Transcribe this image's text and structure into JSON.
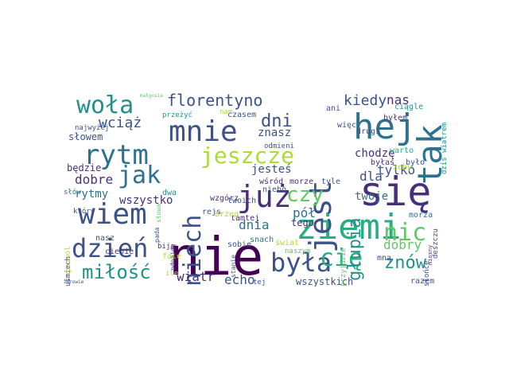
{
  "colors": {
    "background": "#ffffff",
    "palette": [
      "#440154",
      "#472f7d",
      "#3b528b",
      "#2c728e",
      "#21918c",
      "#28ae80",
      "#5ec962",
      "#addc30",
      "#fde725"
    ]
  },
  "words": [
    {
      "text": "nie",
      "color": "#440154"
    },
    {
      "text": "się",
      "color": "#472f7d"
    },
    {
      "text": "hej",
      "color": "#2c728e"
    },
    {
      "text": "ziemi",
      "color": "#28ae80"
    },
    {
      "text": "już",
      "color": "#472f7d"
    },
    {
      "text": "tak",
      "color": "#2c728e"
    },
    {
      "text": "jest",
      "color": "#3b528b"
    },
    {
      "text": "dzień",
      "color": "#3b528b"
    },
    {
      "text": "wiem",
      "color": "#3b528b"
    },
    {
      "text": "mnie",
      "color": "#3b528b"
    },
    {
      "text": "była",
      "color": "#3b528b"
    },
    {
      "text": "rytm",
      "color": "#2c728e"
    },
    {
      "text": "jak",
      "color": "#2c728e"
    },
    {
      "text": "woła",
      "color": "#21918c"
    },
    {
      "text": "niech",
      "color": "#3b528b"
    },
    {
      "text": "jeszcze",
      "color": "#addc30"
    },
    {
      "text": "cię",
      "color": "#28ae80"
    },
    {
      "text": "znów",
      "color": "#21918c"
    },
    {
      "text": "czy",
      "color": "#5ec962"
    },
    {
      "text": "nic",
      "color": "#5ec962"
    },
    {
      "text": "miłość",
      "color": "#21918c"
    },
    {
      "text": "głupia",
      "color": "#21918c"
    },
    {
      "text": "florentyno",
      "color": "#3b528b"
    },
    {
      "text": "dni",
      "color": "#3b528b"
    },
    {
      "text": "kiedy",
      "color": "#3b528b"
    },
    {
      "text": "wciąż",
      "color": "#3b528b"
    },
    {
      "text": "tylko",
      "color": "#3b528b"
    },
    {
      "text": "dla",
      "color": "#3b528b"
    },
    {
      "text": "echo",
      "color": "#3b528b"
    },
    {
      "text": "wiatr",
      "color": "#472f7d"
    },
    {
      "text": "dnia",
      "color": "#2c728e"
    },
    {
      "text": "dobry",
      "color": "#5ec962"
    },
    {
      "text": "pół",
      "color": "#2c728e"
    },
    {
      "text": "chodzę",
      "color": "#472f7d"
    },
    {
      "text": "dobre",
      "color": "#472f7d"
    },
    {
      "text": "wszystko",
      "color": "#472f7d"
    },
    {
      "text": "rytmy",
      "color": "#2c728e"
    },
    {
      "text": "nas",
      "color": "#472f7d"
    },
    {
      "text": "twoje",
      "color": "#2c728e"
    },
    {
      "text": "znasz",
      "color": "#3b528b"
    },
    {
      "text": "jesteś",
      "color": "#3b528b"
    },
    {
      "text": "wszystkich",
      "color": "#3b528b"
    },
    {
      "text": "tego",
      "color": "#472f7d"
    },
    {
      "text": "słowem",
      "color": "#3b528b"
    },
    {
      "text": "będzie",
      "color": "#472f7d"
    },
    {
      "text": "czasem",
      "color": "#3b528b"
    },
    {
      "text": "przeżyć",
      "color": "#21918c"
    },
    {
      "text": "najwyżej",
      "color": "#3b528b"
    },
    {
      "text": "rejs",
      "color": "#3b528b"
    },
    {
      "text": "tamtej",
      "color": "#472f7d"
    },
    {
      "text": "twoich",
      "color": "#3b528b"
    },
    {
      "text": "tyle",
      "color": "#3b528b"
    },
    {
      "text": "morze",
      "color": "#472f7d"
    },
    {
      "text": "snach",
      "color": "#2c728e"
    },
    {
      "text": "wśród",
      "color": "#472f7d"
    },
    {
      "text": "niebo",
      "color": "#3b528b"
    },
    {
      "text": "świat",
      "color": "#addc30"
    },
    {
      "text": "naszym",
      "color": "#5ec962"
    },
    {
      "text": "sobie",
      "color": "#3b528b"
    },
    {
      "text": "mną",
      "color": "#3b528b"
    },
    {
      "text": "morza",
      "color": "#2c728e"
    },
    {
      "text": "razem",
      "color": "#3b528b"
    },
    {
      "text": "który",
      "color": "#3b528b"
    },
    {
      "text": "słów",
      "color": "#2c728e"
    },
    {
      "text": "nasz",
      "color": "#3b528b"
    },
    {
      "text": "ciebie",
      "color": "#472f7d"
    },
    {
      "text": "dwa",
      "color": "#21918c"
    },
    {
      "text": "brzeg",
      "color": "#addc30"
    },
    {
      "text": "wzgórz",
      "color": "#472f7d"
    },
    {
      "text": "byłem",
      "color": "#472f7d"
    },
    {
      "text": "ciągle",
      "color": "#21918c"
    },
    {
      "text": "ani",
      "color": "#3b528b"
    },
    {
      "text": "więc",
      "color": "#3b528b"
    },
    {
      "text": "drugi",
      "color": "#3b528b"
    },
    {
      "text": "byłaś",
      "color": "#472f7d"
    },
    {
      "text": "warto",
      "color": "#28ae80"
    },
    {
      "text": "było",
      "color": "#3b528b"
    },
    {
      "text": "żeby",
      "color": "#addc30"
    },
    {
      "text": "nam",
      "color": "#addc30"
    },
    {
      "text": "tej",
      "color": "#3b528b"
    },
    {
      "text": "odmieni",
      "color": "#3b528b"
    },
    {
      "text": "fale",
      "color": "#addc30"
    },
    {
      "text": "biją",
      "color": "#472f7d"
    },
    {
      "text": "małgosia",
      "color": "#5ec962"
    },
    {
      "text": "uśmiech",
      "color": "#472f7d"
    },
    {
      "text": "pozwól",
      "color": "#addc30"
    },
    {
      "text": "ile",
      "color": "#addc30"
    },
    {
      "text": "słowa",
      "color": "#5ec962"
    },
    {
      "text": "pada",
      "color": "#3b528b"
    },
    {
      "text": "stanie",
      "color": "#3b528b"
    },
    {
      "text": "odnajdę",
      "color": "#472f7d"
    },
    {
      "text": "dziś wiatrem",
      "color": "#21918c"
    },
    {
      "text": "deszczu",
      "color": "#3b528b"
    },
    {
      "text": "miosny",
      "color": "#472f7d"
    },
    {
      "text": "słońce",
      "color": "#3b528b"
    },
    {
      "text": "przyjdzie",
      "color": "#5ec962"
    },
    {
      "text": "zdrowie",
      "color": "#3b528b"
    }
  ]
}
